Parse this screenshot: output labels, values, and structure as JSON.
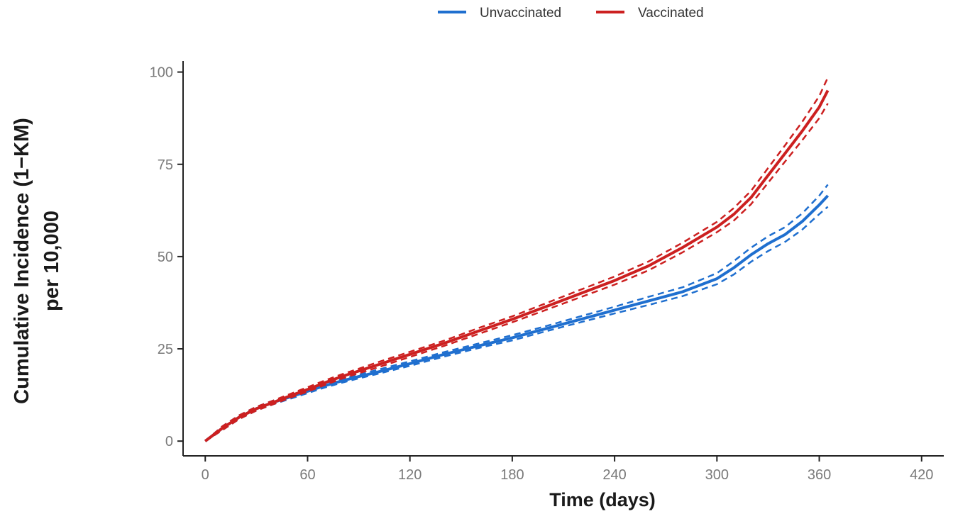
{
  "chart_data": {
    "type": "line",
    "title": "",
    "xlabel": "Time (days)",
    "ylabel_line1": "Cumulative Incidence (1−KM)",
    "ylabel_line2": "per 10,000",
    "xlim": [
      -13,
      433
    ],
    "ylim": [
      -4,
      103
    ],
    "x_ticks": [
      0,
      60,
      120,
      180,
      240,
      300,
      360,
      420
    ],
    "y_ticks": [
      0,
      25,
      50,
      75,
      100
    ],
    "grid": false,
    "legend_position": "top",
    "series": [
      {
        "name": "Unvaccinated",
        "color": "#1f6fcf",
        "x": [
          0,
          10,
          20,
          30,
          40,
          50,
          60,
          70,
          80,
          90,
          100,
          120,
          140,
          160,
          180,
          200,
          220,
          240,
          260,
          280,
          300,
          310,
          320,
          330,
          340,
          350,
          360,
          365
        ],
        "y": [
          0,
          3.5,
          6.5,
          8.8,
          10.5,
          12.0,
          13.5,
          15.0,
          16.3,
          17.5,
          18.6,
          21.0,
          23.5,
          25.8,
          28.0,
          30.5,
          33.0,
          35.5,
          38.0,
          40.5,
          44.0,
          47.0,
          50.5,
          53.5,
          56.0,
          59.5,
          64.0,
          66.5
        ],
        "lower": [
          0,
          3.0,
          6.0,
          8.3,
          10.0,
          11.5,
          13.0,
          14.5,
          15.8,
          17.0,
          18.1,
          20.4,
          22.9,
          25.2,
          27.3,
          29.8,
          32.2,
          34.6,
          36.9,
          39.3,
          42.5,
          45.2,
          48.6,
          51.5,
          54.0,
          57.3,
          61.5,
          63.5
        ],
        "upper": [
          0,
          4.0,
          7.0,
          9.3,
          11.0,
          12.5,
          14.0,
          15.5,
          16.8,
          18.0,
          19.2,
          21.6,
          24.1,
          26.4,
          28.7,
          31.2,
          33.8,
          36.4,
          39.1,
          41.7,
          45.5,
          48.8,
          52.4,
          55.5,
          58.0,
          61.7,
          66.5,
          69.5
        ]
      },
      {
        "name": "Vaccinated",
        "color": "#cc2020",
        "x": [
          0,
          10,
          20,
          30,
          40,
          50,
          60,
          70,
          80,
          90,
          100,
          120,
          140,
          160,
          180,
          200,
          220,
          240,
          260,
          280,
          300,
          310,
          320,
          330,
          340,
          350,
          360,
          365
        ],
        "y": [
          0,
          3.5,
          6.5,
          8.8,
          10.5,
          12.3,
          14.0,
          15.8,
          17.5,
          19.0,
          20.5,
          23.5,
          26.5,
          29.8,
          33.0,
          36.5,
          40.0,
          43.5,
          47.5,
          52.5,
          58.0,
          61.5,
          66.0,
          72.0,
          78.0,
          84.0,
          90.5,
          95.0
        ],
        "lower": [
          0,
          3.0,
          6.0,
          8.3,
          10.0,
          11.8,
          13.4,
          15.2,
          16.9,
          18.4,
          19.8,
          22.8,
          25.8,
          29.0,
          32.2,
          35.6,
          39.0,
          42.4,
          46.3,
          51.2,
          56.6,
          59.8,
          64.2,
          70.0,
          75.8,
          81.5,
          87.5,
          91.5
        ],
        "upper": [
          0,
          4.0,
          7.0,
          9.3,
          11.0,
          12.8,
          14.6,
          16.4,
          18.1,
          19.6,
          21.2,
          24.2,
          27.2,
          30.6,
          33.8,
          37.4,
          41.0,
          44.6,
          48.7,
          53.8,
          59.4,
          63.2,
          67.8,
          74.0,
          80.2,
          86.5,
          93.5,
          98.5
        ]
      }
    ]
  }
}
